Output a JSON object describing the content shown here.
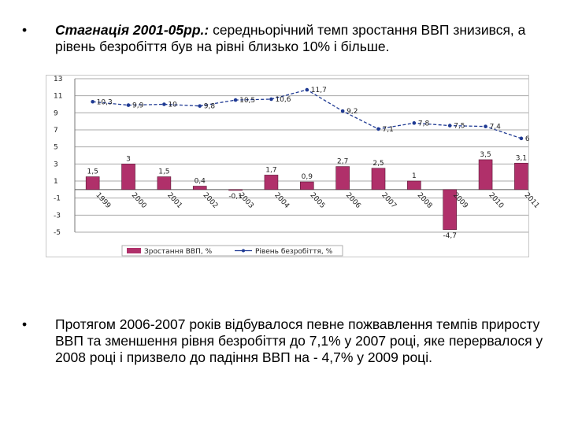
{
  "bullets": [
    {
      "marker": "•",
      "bold_text": "Стагнація 2001-05рр.:",
      "text": " середньорічний темп зростання ВВП знизився, а рівень безробіття був на рівні близько 10% і більше."
    },
    {
      "marker": "•",
      "text": "Протягом 2006-2007 років відбувалося певне пожвавлення темпів приросту ВВП та зменшення рівня безробіття до 7,1% у 2007 році, яке перервалося у 2008 році і призвело до падіння ВВП на - 4,7% у 2009 році."
    }
  ],
  "chart_data": {
    "type": "bar",
    "categories": [
      "1999",
      "2000",
      "2001",
      "2002",
      "2003",
      "2004",
      "2005",
      "2006",
      "2007",
      "2008",
      "2009",
      "2010",
      "2011"
    ],
    "series": [
      {
        "name": "Зростання ВВП, %",
        "type": "bar",
        "color": "#b0306a",
        "values": [
          1.5,
          3,
          1.5,
          0.4,
          -0.1,
          1.7,
          0.9,
          2.7,
          2.5,
          1,
          -4.7,
          3.5,
          3.1
        ],
        "labels": [
          "1,5",
          "3",
          "1,5",
          "0,4",
          "-0,1",
          "1,7",
          "0,9",
          "2,7",
          "2,5",
          "1",
          "-4,7",
          "3,5",
          "3,1"
        ]
      },
      {
        "name": "Рівень безробіття, %",
        "type": "line",
        "color": "#1f3a93",
        "values": [
          10.3,
          9.9,
          10,
          9.8,
          10.5,
          10.6,
          11.7,
          9.2,
          7.1,
          7.8,
          7.5,
          7.4,
          6
        ],
        "labels": [
          "10,3",
          "9,9",
          "10",
          "9,8",
          "10,5",
          "10,6",
          "11,7",
          "9,2",
          "7,1",
          "7,8",
          "7,5",
          "7,4",
          "6"
        ]
      }
    ],
    "y_ticks": [
      13,
      11,
      9,
      7,
      5,
      3,
      1,
      -1,
      -3,
      -5
    ],
    "ylim": [
      -5,
      13
    ],
    "legend": {
      "position": "bottom"
    },
    "grid": true
  }
}
